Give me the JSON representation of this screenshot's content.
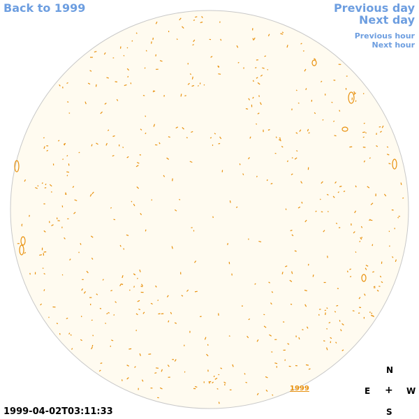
{
  "nav": {
    "back": "Back to 1999",
    "previous_day": "Previous day",
    "next_day": "Next day",
    "previous_hour": "Previous hour",
    "next_hour": "Next hour"
  },
  "year_link": "1999",
  "timestamp": "1999-04-02T03:11:33",
  "compass": {
    "north": "N",
    "east": "E",
    "center": "+",
    "west": "W",
    "south": "S"
  },
  "colors": {
    "disk_fill": "#fffbf0",
    "disk_stroke": "#c8c8c8",
    "contour": "#e8900c",
    "nav": "#6d9ee0"
  }
}
